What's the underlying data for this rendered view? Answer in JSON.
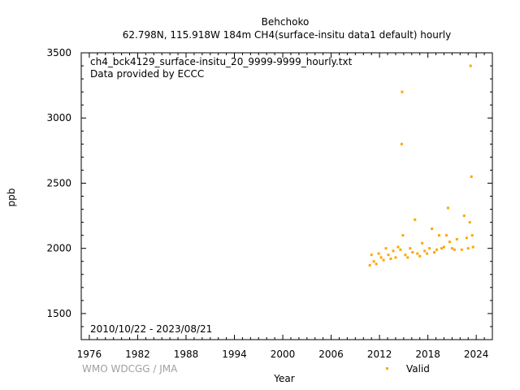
{
  "chart_data": {
    "type": "scatter",
    "title": "Behchoko",
    "subtitle": "62.798N, 115.918W 184m    CH4(surface-insitu data1 default) hourly",
    "annotations": [
      "ch4_bck4129_surface-insitu_20_9999-9999_hourly.txt",
      "Data provided by ECCC"
    ],
    "period": "2010/10/22 - 2023/08/21",
    "xlabel": "Year",
    "ylabel": "ppb",
    "xlim": [
      1975,
      2026
    ],
    "ylim": [
      1300,
      3500
    ],
    "x_ticks": [
      1976,
      1982,
      1988,
      1994,
      2000,
      2006,
      2012,
      2018,
      2024
    ],
    "y_ticks": [
      1500,
      2000,
      2500,
      3000,
      3500
    ],
    "legend": {
      "position": "bottom-right",
      "entries": [
        "Valid"
      ]
    },
    "credit": "WMO WDCGG / JMA",
    "colors": {
      "valid": "#ffa500"
    },
    "series": [
      {
        "name": "Valid",
        "x": [
          2010.8,
          2011.0,
          2011.3,
          2011.6,
          2011.9,
          2012.2,
          2012.5,
          2012.8,
          2013.1,
          2013.4,
          2013.7,
          2014.0,
          2014.3,
          2014.6,
          2014.75,
          2014.8,
          2014.9,
          2015.2,
          2015.5,
          2015.8,
          2016.1,
          2016.4,
          2016.7,
          2017.0,
          2017.3,
          2017.6,
          2017.9,
          2018.2,
          2018.5,
          2018.8,
          2019.1,
          2019.4,
          2019.7,
          2020.0,
          2020.3,
          2020.5,
          2020.7,
          2021.0,
          2021.3,
          2021.6,
          2022.2,
          2022.5,
          2022.8,
          2023.0,
          2023.2,
          2023.3,
          2023.4,
          2023.5,
          2023.6
        ],
        "y": [
          1870,
          1950,
          1900,
          1880,
          1960,
          1930,
          1910,
          2000,
          1950,
          1920,
          1980,
          1930,
          2010,
          1990,
          2800,
          3200,
          2100,
          1950,
          1930,
          2000,
          1970,
          2220,
          1960,
          1940,
          2040,
          1980,
          1960,
          2000,
          2150,
          1970,
          1990,
          2100,
          2000,
          2010,
          2100,
          2310,
          2050,
          2000,
          1990,
          2070,
          1990,
          2250,
          2080,
          2000,
          2200,
          3400,
          2550,
          2100,
          2010
        ]
      }
    ]
  }
}
